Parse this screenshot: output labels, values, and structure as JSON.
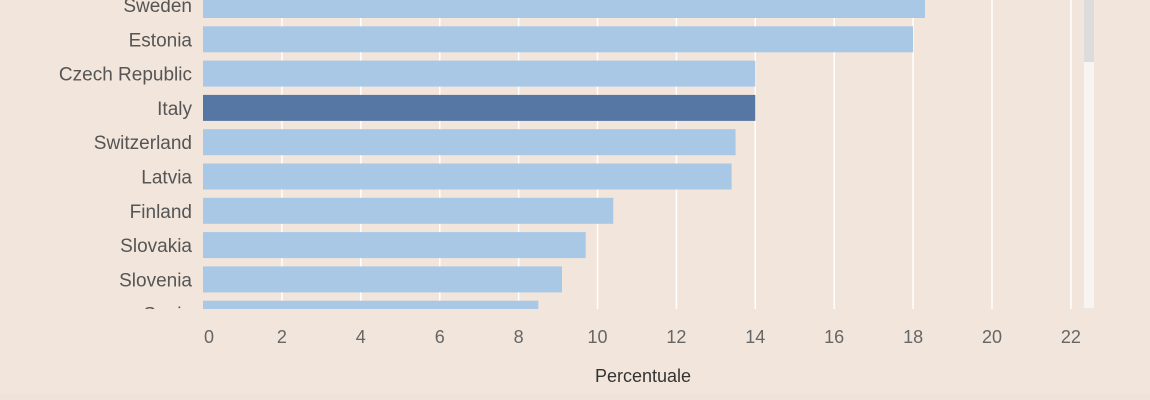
{
  "colors": {
    "background": "#f2e5db",
    "bar_default": "#a8c8e5",
    "bar_highlight": "#5677a4",
    "gridline": "#ffffff"
  },
  "chart_data": {
    "type": "bar",
    "orientation": "horizontal",
    "categories": [
      "Sweden",
      "Estonia",
      "Czech Republic",
      "Italy",
      "Switzerland",
      "Latvia",
      "Finland",
      "Slovakia",
      "Slovenia",
      "Spain"
    ],
    "values": [
      18.3,
      18.0,
      14.0,
      14.0,
      13.5,
      13.4,
      10.4,
      9.7,
      9.1,
      8.5
    ],
    "highlight": "Italy",
    "xlabel": "Percentuale",
    "xlim": [
      0,
      22
    ],
    "xticks": [
      0,
      2,
      4,
      6,
      8,
      10,
      12,
      14,
      16,
      18,
      20,
      22
    ],
    "grid": true,
    "scrollable": true
  }
}
